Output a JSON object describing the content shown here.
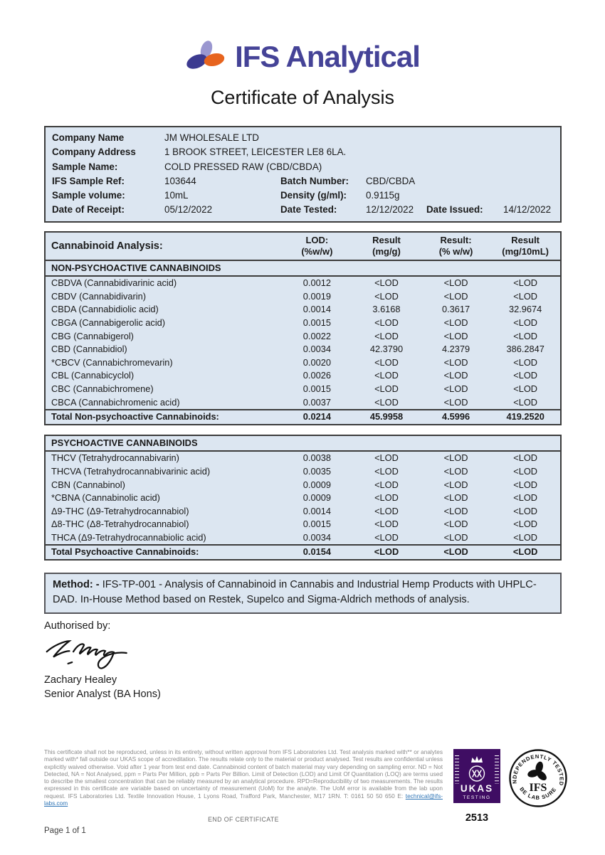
{
  "brand": {
    "name": "IFS Analytical",
    "logo_icon": "ifs-trefoil-icon",
    "colors": {
      "brand_purple": "#454397",
      "icon_dark": "#3c3a90",
      "icon_light": "#9a97d0",
      "icon_orange": "#e7641e",
      "table_bg": "#dce6f1",
      "link_blue": "#2e74b5",
      "ukas_purple": "#3f0d63"
    }
  },
  "title": "Certificate of Analysis",
  "company": {
    "rows": [
      [
        "Company Name",
        "JM WHOLESALE LTD"
      ],
      [
        "Company Address",
        "1 BROOK STREET, LEICESTER LE8 6LA."
      ],
      [
        "Sample Name:",
        "COLD PRESSED RAW (CBD/CBDA)"
      ],
      [
        "IFS Sample Ref:",
        "103644",
        "Batch Number:",
        "CBD/CBDA"
      ],
      [
        "Sample volume:",
        "10mL",
        "Density (g/ml):",
        "0.9115g"
      ],
      [
        "Date of Receipt:",
        "05/12/2022",
        "Date Tested:",
        "12/12/2022",
        "Date Issued:",
        "14/12/2022"
      ]
    ]
  },
  "analysis": {
    "header": {
      "title": "Cannabinoid Analysis:",
      "columns": [
        [
          "LOD:",
          "(%w/w)"
        ],
        [
          "Result",
          "(mg/g)"
        ],
        [
          "Result:",
          "(% w/w)"
        ],
        [
          "Result",
          "(mg/10mL)"
        ]
      ]
    },
    "non_psychoactive": {
      "section": "NON-PSYCHOACTIVE CANNABINOIDS",
      "rows": [
        [
          "CBDVA (Cannabidivarinic acid)",
          "0.0012",
          "<LOD",
          "<LOD",
          "<LOD"
        ],
        [
          "CBDV (Cannabidivarin)",
          "0.0019",
          "<LOD",
          "<LOD",
          "<LOD"
        ],
        [
          "CBDA (Cannabidiolic acid)",
          "0.0014",
          "3.6168",
          "0.3617",
          "32.9674"
        ],
        [
          "CBGA (Cannabigerolic acid)",
          "0.0015",
          "<LOD",
          "<LOD",
          "<LOD"
        ],
        [
          "CBG (Cannabigerol)",
          "0.0022",
          "<LOD",
          "<LOD",
          "<LOD"
        ],
        [
          "CBD (Cannabidiol)",
          "0.0034",
          "42.3790",
          "4.2379",
          "386.2847"
        ],
        [
          "*CBCV (Cannabichromevarin)",
          "0.0020",
          "<LOD",
          "<LOD",
          "<LOD"
        ],
        [
          "CBL (Cannabicyclol)",
          "0.0026",
          "<LOD",
          "<LOD",
          "<LOD"
        ],
        [
          "CBC (Cannabichromene)",
          "0.0015",
          "<LOD",
          "<LOD",
          "<LOD"
        ],
        [
          "CBCA (Cannabichromenic acid)",
          "0.0037",
          "<LOD",
          "<LOD",
          "<LOD"
        ]
      ],
      "total": [
        "Total Non-psychoactive Cannabinoids:",
        "0.0214",
        "45.9958",
        "4.5996",
        "419.2520"
      ]
    },
    "psychoactive": {
      "section": "PSYCHOACTIVE CANNABINOIDS",
      "rows": [
        [
          "THCV (Tetrahydrocannabivarin)",
          "0.0038",
          "<LOD",
          "<LOD",
          "<LOD"
        ],
        [
          "THCVA (Tetrahydrocannabivarinic acid)",
          "0.0035",
          "<LOD",
          "<LOD",
          "<LOD"
        ],
        [
          "CBN (Cannabinol)",
          "0.0009",
          "<LOD",
          "<LOD",
          "<LOD"
        ],
        [
          "*CBNA (Cannabinolic acid)",
          "0.0009",
          "<LOD",
          "<LOD",
          "<LOD"
        ],
        [
          "Δ9-THC (Δ9-Tetrahydrocannabiol)",
          "0.0014",
          "<LOD",
          "<LOD",
          "<LOD"
        ],
        [
          "Δ8-THC (Δ8-Tetrahydrocannabiol)",
          "0.0015",
          "<LOD",
          "<LOD",
          "<LOD"
        ],
        [
          "THCA (Δ9-Tetrahydrocannabiolic acid)",
          "0.0034",
          "<LOD",
          "<LOD",
          "<LOD"
        ]
      ],
      "total": [
        "Total Psychoactive Cannabinoids:",
        "0.0154",
        "<LOD",
        "<LOD",
        "<LOD"
      ]
    }
  },
  "method": {
    "label": "Method: -",
    "text": " IFS-TP-001 - Analysis of Cannabinoid in Cannabis and Industrial Hemp Products with UHPLC-DAD. In-House Method based on Restek, Supelco and Sigma-Aldrich methods of analysis."
  },
  "authorisation": {
    "heading": "Authorised by:",
    "signature_icon": "handwritten-signature",
    "name": "Zachary Healey",
    "role": "Senior Analyst (BA Hons)"
  },
  "footer": {
    "disclaimer": "This certificate shall not be reproduced, unless in its entirety, without written approval from IFS Laboratories Ltd. Test analysis marked with** or analytes marked with* fall outside our UKAS scope of accreditation.  The results relate only to the material or product analysed. Test results are confidential unless explicitly waived otherwise. Void after 1 year from test end date. Cannabinoid content of batch material may vary depending on sampling error. ND = Not Detected, NA = Not Analysed, ppm = Parts Per Million, ppb = Parts Per Billion. Limit of Detection (LOD) and Limit Of Quantitation (LOQ) are terms used to describe the smallest concentration that can be reliably measured by an analytical procedure. RPD=Reproducibility of two measurements. The results expressed in this certificate are variable based on uncertainty of measurement (UoM) for the analyte. The UoM error is available from the lab upon request. IFS Laboratories Ltd. Textile Innovation House, 1 Lyons Road, Trafford Park, Manchester, M17 1RN. T: 0161 50 50 650 E: ",
    "email": "technical@ifs-labs.com",
    "end_text": "END OF CERTIFICATE",
    "page": "Page 1 of 1",
    "ukas": {
      "name": "UKAS",
      "tagline": "TESTING",
      "number": "2513"
    },
    "stamp": {
      "top": "INDEPENDENTLY TESTED",
      "center": "IFS",
      "bottom": "BE LAB SURE"
    }
  }
}
